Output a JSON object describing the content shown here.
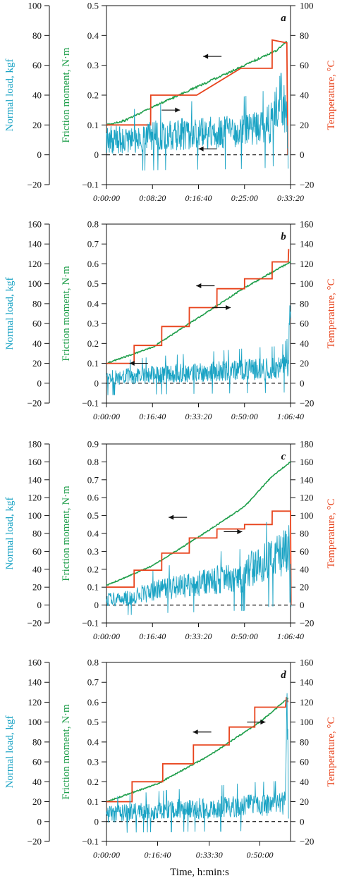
{
  "xlabel": "Time, h:min:s",
  "colors": {
    "load": "#1aa3c4",
    "friction": "#1e9e4a",
    "temperature": "#e8431c",
    "axis": "#111111"
  },
  "chart_data": [
    {
      "type": "line",
      "panel": "a",
      "x_ticks": [
        "0:00:00",
        "0:08:20",
        "0:16:40",
        "0:25:00",
        "0:33:20"
      ],
      "x_tick_seconds": [
        0,
        500,
        1000,
        1500,
        2000
      ],
      "xlim_seconds": [
        0,
        2000
      ],
      "left_axis": {
        "label": "Normal load, kgf",
        "ticks": [
          "100",
          "80",
          "60",
          "40",
          "20",
          "0",
          "−20"
        ],
        "range": [
          -20,
          100
        ]
      },
      "mid_axis": {
        "label": "Friction moment, N·m",
        "ticks": [
          "0.5",
          "0.4",
          "0.3",
          "0.2",
          "0.1",
          "0",
          "−0.1"
        ],
        "range": [
          -0.1,
          0.5
        ]
      },
      "right_axis": {
        "label": "Temperature, °C",
        "ticks": [
          "100",
          "80",
          "60",
          "40",
          "20",
          "0",
          "−20"
        ],
        "range": [
          -20,
          100
        ]
      },
      "series": [
        {
          "name": "Friction moment",
          "axis": "mid",
          "x": [
            0,
            200,
            500,
            1000,
            1500,
            1850,
            1960
          ],
          "values": [
            0.1,
            0.115,
            0.16,
            0.23,
            0.3,
            0.35,
            0.38
          ]
        },
        {
          "name": "Temperature",
          "axis": "right",
          "x": [
            0,
            480,
            481,
            980,
            981,
            1460,
            1461,
            1800,
            1801,
            1960,
            1970
          ],
          "values": [
            20,
            20,
            40,
            40,
            40,
            58,
            58,
            58,
            77,
            75,
            0
          ]
        },
        {
          "name": "Normal load",
          "axis": "left",
          "x": [
            0,
            300,
            600,
            900,
            1200,
            1500,
            1700,
            1800,
            1850,
            1900,
            1960,
            1975
          ],
          "values": [
            10,
            11,
            13,
            14,
            15,
            16,
            18,
            22,
            30,
            40,
            25,
            -10
          ]
        }
      ],
      "arrows": [
        {
          "target": "mid",
          "x": 1250,
          "y": 0.33,
          "direction": "left"
        },
        {
          "target": "right",
          "x": 600,
          "y": 30,
          "direction": "right"
        },
        {
          "target": "left",
          "x": 1200,
          "y": 4,
          "direction": "left"
        }
      ]
    },
    {
      "type": "line",
      "panel": "b",
      "x_ticks": [
        "0:00:00",
        "0:16:40",
        "0:33:20",
        "0:50:00",
        "1:06:40"
      ],
      "x_tick_seconds": [
        0,
        1000,
        2000,
        3000,
        4000
      ],
      "xlim_seconds": [
        0,
        4000
      ],
      "left_axis": {
        "label": "Normal load, kgf",
        "ticks": [
          "160",
          "140",
          "120",
          "100",
          "80",
          "60",
          "40",
          "20",
          "0",
          "−20"
        ],
        "range": [
          -20,
          160
        ]
      },
      "mid_axis": {
        "label": "Friction moment, N·m",
        "ticks": [
          "0.8",
          "0.7",
          "0.6",
          "0.5",
          "0.4",
          "0.3",
          "0.2",
          "0.1",
          "0",
          "−0.1"
        ],
        "range": [
          -0.1,
          0.8
        ]
      },
      "right_axis": {
        "label": "Temperature, °C",
        "ticks": [
          "160",
          "140",
          "120",
          "100",
          "80",
          "60",
          "40",
          "20",
          "0",
          "−20"
        ],
        "range": [
          -20,
          160
        ]
      },
      "series": [
        {
          "name": "Friction moment",
          "axis": "mid",
          "x": [
            0,
            1000,
            2000,
            3000,
            4000
          ],
          "values": [
            0.1,
            0.18,
            0.33,
            0.48,
            0.61
          ]
        },
        {
          "name": "Temperature",
          "axis": "right",
          "x": [
            0,
            600,
            601,
            1200,
            1201,
            1800,
            1801,
            2400,
            2401,
            3000,
            3001,
            3600,
            3601,
            3950,
            3960
          ],
          "values": [
            20,
            20,
            38,
            38,
            57,
            57,
            76,
            76,
            95,
            95,
            105,
            105,
            122,
            122,
            135
          ]
        },
        {
          "name": "Normal load",
          "axis": "left",
          "x": [
            0,
            800,
            1600,
            2400,
            3200,
            3800,
            3950,
            3980,
            4000
          ],
          "values": [
            5,
            8,
            10,
            12,
            14,
            15,
            20,
            60,
            90
          ]
        }
      ],
      "arrows": [
        {
          "target": "mid",
          "x": 2350,
          "y": 0.49,
          "direction": "left"
        },
        {
          "target": "right",
          "x": 2300,
          "y": 76,
          "direction": "right"
        },
        {
          "target": "left",
          "x": 900,
          "y": 20,
          "direction": "left"
        }
      ]
    },
    {
      "type": "line",
      "panel": "c",
      "x_ticks": [
        "0:00:00",
        "0:16:40",
        "0:33:20",
        "0:50:00",
        "1:06:40"
      ],
      "x_tick_seconds": [
        0,
        1000,
        2000,
        3000,
        4000
      ],
      "xlim_seconds": [
        0,
        4000
      ],
      "left_axis": {
        "label": "Normal load, kgf",
        "ticks": [
          "180",
          "160",
          "140",
          "120",
          "100",
          "80",
          "60",
          "40",
          "20",
          "0",
          "−20"
        ],
        "range": [
          -20,
          180
        ]
      },
      "mid_axis": {
        "label": "Friction moment, N·m",
        "ticks": [
          "0.9",
          "0.8",
          "0.7",
          "0.6",
          "0.5",
          "0.4",
          "0.3",
          "0.2",
          "0.1",
          "0",
          "−0.1"
        ],
        "range": [
          -0.1,
          0.9
        ]
      },
      "right_axis": {
        "label": "Temperature, °C",
        "ticks": [
          "180",
          "160",
          "140",
          "120",
          "100",
          "80",
          "60",
          "40",
          "20",
          "0",
          "−20"
        ],
        "range": [
          -20,
          180
        ]
      },
      "series": [
        {
          "name": "Friction moment",
          "axis": "mid",
          "x": [
            0,
            1000,
            2000,
            3000,
            3600,
            4000
          ],
          "values": [
            0.11,
            0.22,
            0.38,
            0.55,
            0.72,
            0.8
          ]
        },
        {
          "name": "Temperature",
          "axis": "right",
          "x": [
            0,
            600,
            601,
            1200,
            1201,
            1800,
            1801,
            2400,
            2401,
            3000,
            3001,
            3600,
            3601,
            4000,
            4010
          ],
          "values": [
            20,
            20,
            39,
            39,
            58,
            58,
            75,
            75,
            85,
            85,
            90,
            90,
            105,
            105,
            0
          ]
        },
        {
          "name": "Normal load",
          "axis": "left",
          "x": [
            0,
            600,
            1200,
            1800,
            2400,
            3000,
            3100,
            3600,
            3900,
            3990,
            4010
          ],
          "values": [
            5,
            10,
            18,
            22,
            28,
            30,
            40,
            50,
            60,
            70,
            0
          ]
        }
      ],
      "arrows": [
        {
          "target": "mid",
          "x": 1750,
          "y": 0.49,
          "direction": "left"
        },
        {
          "target": "right",
          "x": 2550,
          "y": 82,
          "direction": "right"
        }
      ]
    },
    {
      "type": "line",
      "panel": "d",
      "x_ticks": [
        "0:00:00",
        "0:16:40",
        "0:33:30",
        "0:50:00"
      ],
      "x_tick_seconds": [
        0,
        1000,
        2010,
        3000
      ],
      "xlim_seconds": [
        0,
        3600
      ],
      "left_axis": {
        "label": "Normal load, kgf",
        "ticks": [
          "160",
          "140",
          "120",
          "100",
          "80",
          "60",
          "40",
          "20",
          "0",
          "−20"
        ],
        "range": [
          -20,
          160
        ]
      },
      "mid_axis": {
        "label": "Friction moment, N·m",
        "ticks": [
          "0.8",
          "0.7",
          "0.6",
          "0.5",
          "0.4",
          "0.3",
          "0.2",
          "0.1",
          "0",
          "−0.1"
        ],
        "range": [
          -0.1,
          0.8
        ]
      },
      "right_axis": {
        "label": "Temperature, °C",
        "ticks": [
          "160",
          "140",
          "120",
          "100",
          "80",
          "60",
          "40",
          "20",
          "0",
          "−20"
        ],
        "range": [
          -20,
          160
        ]
      },
      "series": [
        {
          "name": "Friction moment",
          "axis": "mid",
          "x": [
            0,
            1000,
            2000,
            3000,
            3550
          ],
          "values": [
            0.1,
            0.19,
            0.33,
            0.5,
            0.62
          ]
        },
        {
          "name": "Temperature",
          "axis": "right",
          "x": [
            0,
            500,
            501,
            1100,
            1101,
            1700,
            1701,
            2400,
            2401,
            2900,
            2901,
            3500,
            3520,
            3550
          ],
          "values": [
            20,
            20,
            40,
            40,
            58,
            58,
            77,
            77,
            95,
            95,
            115,
            115,
            125,
            120
          ]
        },
        {
          "name": "Normal load",
          "axis": "left",
          "x": [
            0,
            700,
            1400,
            2100,
            2800,
            3400,
            3500,
            3540,
            3560
          ],
          "values": [
            7,
            10,
            12,
            14,
            16,
            17,
            20,
            120,
            10
          ]
        }
      ],
      "arrows": [
        {
          "target": "mid",
          "x": 2050,
          "y": 0.45,
          "direction": "left"
        },
        {
          "target": "right",
          "x": 2750,
          "y": 100,
          "direction": "right"
        }
      ]
    }
  ]
}
